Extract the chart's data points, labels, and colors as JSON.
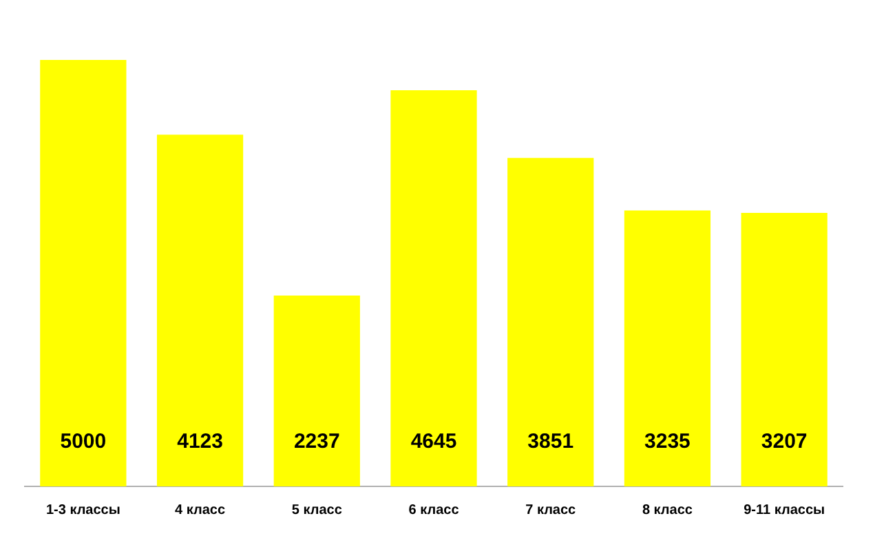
{
  "chart_data": {
    "type": "bar",
    "categories": [
      "1-3 классы",
      "4 класс",
      "5 класс",
      "6 класс",
      "7 класс",
      "8 класс",
      "9-11 классы"
    ],
    "values": [
      5000,
      4123,
      2237,
      4645,
      3851,
      3235,
      3207
    ],
    "color": "#ffff00",
    "data_labels": true,
    "grid": false,
    "legend": false
  }
}
